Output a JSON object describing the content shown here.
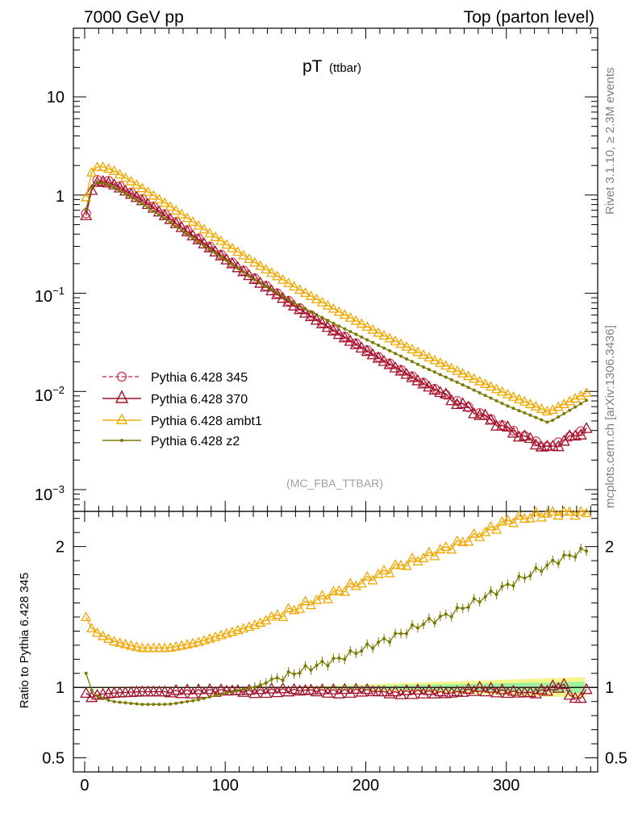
{
  "header": {
    "left": "7000 GeV pp",
    "right": "Top (parton level)"
  },
  "side": {
    "rivet": "Rivet 3.1.10, ≥ 2.3M events",
    "mcplots": "mcplots.cern.ch [arXiv:1306.3436]"
  },
  "colors": {
    "p345": "#d6405a",
    "p370": "#a0102a",
    "ambt1": "#f0a800",
    "z2": "#7a7a00"
  },
  "chart_data": [
    {
      "type": "line",
      "title": "pT",
      "subtitle": "(ttbar)",
      "annotation": "(MC_FBA_TTBAR)",
      "yscale": "log",
      "xlim": [
        -8,
        365
      ],
      "ylim": [
        0.0006,
        50
      ],
      "xlabel": "",
      "ylabel": "",
      "ytick_labels": [
        {
          "value": 10,
          "base": "10",
          "exp": ""
        },
        {
          "value": 1,
          "base": "1",
          "exp": ""
        },
        {
          "value": 0.1,
          "base": "10",
          "exp": "−1"
        },
        {
          "value": 0.01,
          "base": "10",
          "exp": "−2"
        },
        {
          "value": 0.001,
          "base": "10",
          "exp": "−3"
        }
      ],
      "legend_position": "bottom-left",
      "series": [
        {
          "name": "Pythia 6.428 345",
          "key": "p345",
          "marker": "circle",
          "dashed": true,
          "x": [
            1,
            5,
            10,
            20,
            40,
            60,
            80,
            100,
            120,
            150,
            180,
            210,
            240,
            270,
            300,
            330,
            357
          ],
          "y": [
            0.65,
            1.15,
            1.5,
            1.35,
            0.93,
            0.6,
            0.37,
            0.23,
            0.145,
            0.075,
            0.04,
            0.022,
            0.0125,
            0.0073,
            0.0043,
            0.0027,
            0.0042
          ]
        },
        {
          "name": "Pythia 6.428 370",
          "key": "p370",
          "marker": "triangle",
          "dashed": false,
          "x": [
            1,
            5,
            10,
            20,
            40,
            60,
            80,
            100,
            120,
            150,
            180,
            210,
            240,
            270,
            300,
            330,
            357
          ],
          "y": [
            0.62,
            1.12,
            1.42,
            1.3,
            0.9,
            0.58,
            0.36,
            0.225,
            0.142,
            0.073,
            0.039,
            0.0215,
            0.0122,
            0.0071,
            0.0042,
            0.0026,
            0.0041
          ]
        },
        {
          "name": "Pythia 6.428 ambt1",
          "key": "ambt1",
          "marker": "triangle",
          "dashed": false,
          "x": [
            1,
            5,
            10,
            20,
            40,
            60,
            80,
            100,
            120,
            150,
            180,
            210,
            240,
            270,
            300,
            330,
            357
          ],
          "y": [
            0.95,
            1.7,
            2.0,
            1.8,
            1.2,
            0.78,
            0.5,
            0.32,
            0.21,
            0.115,
            0.066,
            0.039,
            0.024,
            0.015,
            0.0095,
            0.0062,
            0.0097
          ]
        },
        {
          "name": "Pythia 6.428 z2",
          "key": "z2",
          "marker": "dot",
          "dashed": false,
          "x": [
            1,
            5,
            10,
            20,
            40,
            60,
            80,
            100,
            120,
            150,
            180,
            210,
            240,
            270,
            300,
            330,
            357
          ],
          "y": [
            0.72,
            1.2,
            1.38,
            1.22,
            0.83,
            0.54,
            0.34,
            0.22,
            0.14,
            0.078,
            0.047,
            0.029,
            0.018,
            0.0115,
            0.0072,
            0.0048,
            0.0081
          ]
        }
      ]
    },
    {
      "type": "line",
      "xlabel": "",
      "ylabel": "Ratio to Pythia 6.428 345",
      "xlim": [
        -8,
        365
      ],
      "ylim": [
        0.4,
        2.25
      ],
      "xticks": [
        0,
        100,
        200,
        300
      ],
      "yticks": [
        0.5,
        1,
        2
      ],
      "reference": 1,
      "series": [
        {
          "name": "Pythia 6.428 370",
          "key": "p370",
          "marker": "triangle",
          "x": [
            1,
            5,
            10,
            20,
            40,
            60,
            80,
            100,
            120,
            140,
            160,
            180,
            200,
            220,
            240,
            260,
            280,
            300,
            320,
            340,
            350,
            357
          ],
          "y": [
            0.96,
            0.93,
            0.95,
            0.96,
            0.97,
            0.97,
            0.97,
            0.98,
            0.97,
            0.98,
            0.98,
            0.97,
            0.98,
            0.96,
            0.97,
            0.96,
            0.99,
            0.97,
            0.96,
            1.02,
            0.9,
            0.98
          ]
        },
        {
          "name": "Pythia 6.428 ambt1",
          "key": "ambt1",
          "marker": "triangle",
          "x": [
            1,
            5,
            10,
            20,
            40,
            60,
            80,
            100,
            120,
            140,
            160,
            180,
            200,
            220,
            240,
            260,
            280,
            300,
            320,
            340,
            350,
            357
          ],
          "y": [
            1.5,
            1.42,
            1.38,
            1.33,
            1.28,
            1.28,
            1.32,
            1.38,
            1.44,
            1.52,
            1.6,
            1.68,
            1.76,
            1.85,
            1.92,
            2.0,
            2.08,
            2.18,
            2.22,
            2.25,
            2.24,
            2.25
          ]
        },
        {
          "name": "Pythia 6.428 z2",
          "key": "z2",
          "marker": "dot",
          "x": [
            1,
            5,
            10,
            20,
            40,
            60,
            80,
            100,
            120,
            140,
            160,
            180,
            200,
            220,
            240,
            260,
            280,
            300,
            320,
            340,
            350,
            357
          ],
          "y": [
            1.1,
            0.98,
            0.93,
            0.9,
            0.88,
            0.88,
            0.91,
            0.96,
            1.0,
            1.07,
            1.14,
            1.2,
            1.28,
            1.36,
            1.45,
            1.52,
            1.62,
            1.72,
            1.82,
            1.92,
            1.95,
            1.98
          ]
        }
      ]
    }
  ]
}
